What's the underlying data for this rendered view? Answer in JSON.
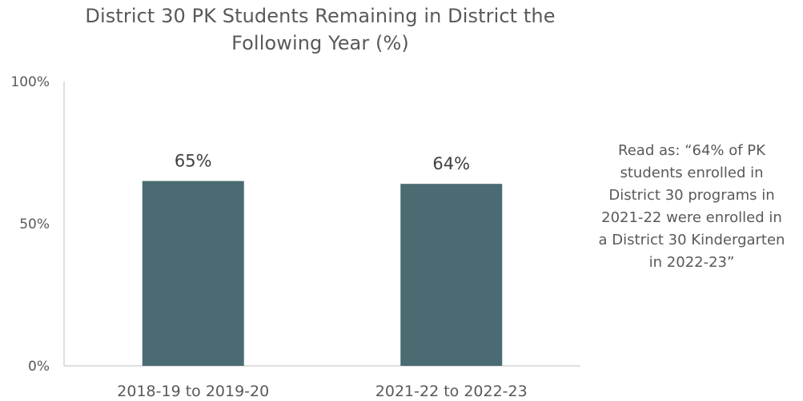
{
  "chart_data": {
    "type": "bar",
    "title": "District 30 PK Students Remaining in District the Following Year (%)",
    "title_lines": [
      "District 30 PK Students Remaining in District the",
      "Following Year (%)"
    ],
    "categories": [
      "2018-19 to 2019-20",
      "2021-22 to 2022-23"
    ],
    "series": [
      {
        "values": [
          65,
          64
        ],
        "data_labels": [
          "65%",
          "64%"
        ],
        "color": "#4b6b72"
      }
    ],
    "ylim": [
      0,
      100
    ],
    "yticks": [
      0,
      50,
      100
    ],
    "ytick_labels": [
      "0%",
      "50%",
      "100%"
    ],
    "xlabel": "",
    "ylabel": "",
    "grid": false,
    "annotation_lines": [
      "Read as: “64% of PK",
      "students enrolled in",
      "District 30 programs in",
      "2021-22 were enrolled in",
      "a District 30 Kindergarten",
      "in 2022-23”"
    ]
  },
  "colors": {
    "bar": "#4b6b72",
    "text": "#595959",
    "label": "#404040",
    "axis": "#bfbfbf"
  }
}
